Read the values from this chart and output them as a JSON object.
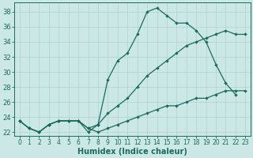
{
  "xlabel": "Humidex (Indice chaleur)",
  "xlim": [
    -0.5,
    23.5
  ],
  "ylim": [
    21.5,
    39.2
  ],
  "xticks": [
    0,
    1,
    2,
    3,
    4,
    5,
    6,
    7,
    8,
    9,
    10,
    11,
    12,
    13,
    14,
    15,
    16,
    17,
    18,
    19,
    20,
    21,
    22,
    23
  ],
  "yticks": [
    22,
    24,
    26,
    28,
    30,
    32,
    34,
    36,
    38
  ],
  "bg_color": "#cce8e6",
  "grid_color": "#aad3d0",
  "line_color": "#1a6b5e",
  "curves": [
    {
      "x": [
        0,
        1,
        2,
        3,
        4,
        5,
        6,
        7,
        8,
        9,
        10,
        11,
        12,
        13,
        14,
        15,
        16,
        17,
        18,
        19,
        20,
        21,
        22
      ],
      "y": [
        23.5,
        22.5,
        22.0,
        23.0,
        23.5,
        23.5,
        23.5,
        22.0,
        23.0,
        29.0,
        31.5,
        32.5,
        35.0,
        38.0,
        38.5,
        37.5,
        36.5,
        36.5,
        35.5,
        34.0,
        31.0,
        28.5,
        27.0
      ]
    },
    {
      "x": [
        0,
        1,
        2,
        3,
        4,
        5,
        6,
        7,
        8,
        9,
        10,
        11,
        12,
        13,
        14,
        15,
        16,
        17,
        18,
        19,
        20,
        21,
        22,
        23
      ],
      "y": [
        23.5,
        22.5,
        22.0,
        23.0,
        23.5,
        23.5,
        23.5,
        22.5,
        23.0,
        24.5,
        25.5,
        26.5,
        28.0,
        29.5,
        30.5,
        31.5,
        32.5,
        33.5,
        34.0,
        34.5,
        35.0,
        35.5,
        35.0,
        35.0
      ]
    },
    {
      "x": [
        0,
        1,
        2,
        3,
        4,
        5,
        6,
        7,
        8,
        9,
        10,
        11,
        12,
        13,
        14,
        15,
        16,
        17,
        18,
        19,
        20,
        21,
        22,
        23
      ],
      "y": [
        23.5,
        22.5,
        22.0,
        23.0,
        23.5,
        23.5,
        23.5,
        22.5,
        22.0,
        22.5,
        23.0,
        23.5,
        24.0,
        24.5,
        25.0,
        25.5,
        25.5,
        26.0,
        26.5,
        26.5,
        27.0,
        27.5,
        27.5,
        27.5
      ]
    }
  ]
}
